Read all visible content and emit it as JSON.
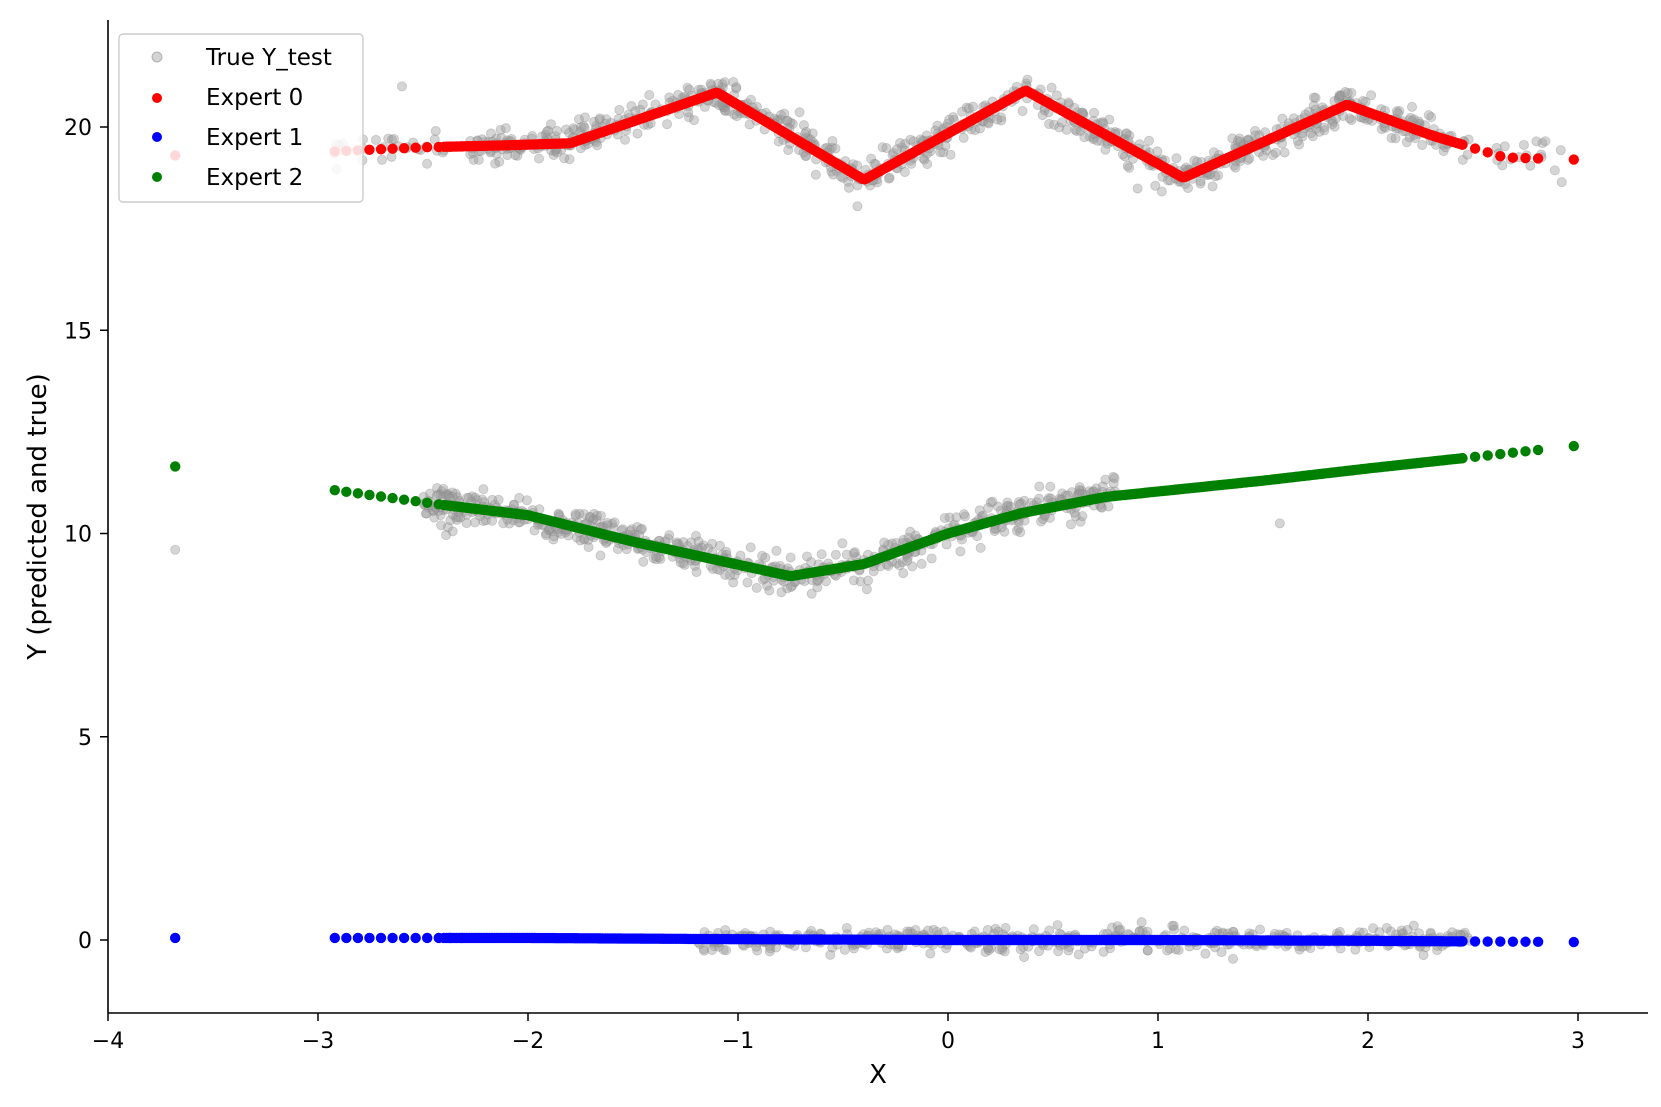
{
  "chart_data": {
    "type": "scatter",
    "title": "",
    "xlabel": "X",
    "ylabel": "Y (predicted and true)",
    "xlim": [
      -4,
      3.3
    ],
    "ylim": [
      -1.8,
      22.5
    ],
    "xticks": [
      -4,
      -3,
      -2,
      -1,
      0,
      1,
      2,
      3
    ],
    "xtick_labels": [
      "−4",
      "−3",
      "−2",
      "−1",
      "0",
      "1",
      "2",
      "3"
    ],
    "yticks": [
      0,
      5,
      10,
      15,
      20
    ],
    "ytick_labels": [
      "0",
      "5",
      "10",
      "15",
      "20"
    ],
    "grid": false,
    "legend_position": "top-left",
    "legend": [
      {
        "label": "True Y_test",
        "color": "#a0a0a0"
      },
      {
        "label": "Expert 0",
        "color": "#ff0000"
      },
      {
        "label": "Expert 1",
        "color": "#0000ff"
      },
      {
        "label": "Expert 2",
        "color": "#008000"
      }
    ],
    "series": [
      {
        "name": "Expert 0",
        "color": "#ff0000",
        "points": [
          [
            -3.68,
            19.3
          ],
          [
            -2.92,
            19.4
          ],
          [
            -2.5,
            19.5
          ],
          [
            -2.1,
            19.55
          ],
          [
            -1.8,
            19.6
          ],
          [
            -1.1,
            20.85
          ],
          [
            -0.4,
            18.7
          ],
          [
            0.37,
            20.9
          ],
          [
            1.12,
            18.75
          ],
          [
            1.9,
            20.55
          ],
          [
            2.3,
            19.8
          ],
          [
            2.65,
            19.25
          ],
          [
            2.98,
            19.2
          ]
        ]
      },
      {
        "name": "Expert 1",
        "color": "#0000ff",
        "points": [
          [
            -3.68,
            0.05
          ],
          [
            -2.9,
            0.05
          ],
          [
            -2.0,
            0.05
          ],
          [
            -1.0,
            0.02
          ],
          [
            0.0,
            0.0
          ],
          [
            1.0,
            0.0
          ],
          [
            2.0,
            -0.02
          ],
          [
            2.98,
            -0.05
          ]
        ]
      },
      {
        "name": "Expert 2",
        "color": "#008000",
        "points": [
          [
            -3.68,
            11.65
          ],
          [
            -2.9,
            11.05
          ],
          [
            -2.4,
            10.7
          ],
          [
            -2.0,
            10.45
          ],
          [
            -1.5,
            9.8
          ],
          [
            -0.75,
            8.95
          ],
          [
            -0.4,
            9.25
          ],
          [
            0.0,
            10.0
          ],
          [
            0.35,
            10.5
          ],
          [
            0.75,
            10.9
          ],
          [
            1.5,
            11.3
          ],
          [
            2.0,
            11.6
          ],
          [
            2.98,
            12.15
          ]
        ]
      },
      {
        "name": "True Y_test",
        "color": "#a0a0a0",
        "description_curves": [
          {
            "x_range": [
              -2.92,
              2.98
            ],
            "shape": "expert-0 cluster",
            "noise": 0.25
          },
          {
            "x_range": [
              -2.92,
              1.6
            ],
            "shape": "expert-2 cluster",
            "noise": 0.25
          },
          {
            "x_range": [
              -1.2,
              2.5
            ],
            "shape": "expert-1 cluster",
            "noise": 0.2
          }
        ],
        "outliers": [
          [
            -3.68,
            9.6
          ],
          [
            -2.6,
            21.0
          ],
          [
            1.58,
            10.25
          ]
        ]
      }
    ]
  }
}
